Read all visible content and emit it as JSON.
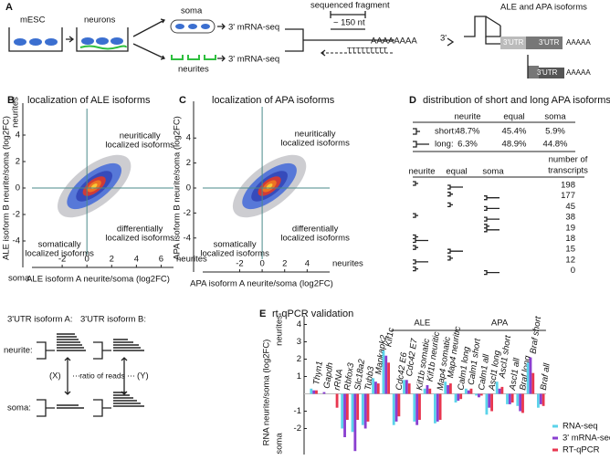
{
  "panel_a": {
    "label": "A",
    "mesc": "mESC",
    "neurons": "neurons",
    "soma": "soma",
    "neurites": "neurites",
    "seq_soma": "3' mRNA-seq",
    "seq_neurites": "3' mRNA-seq",
    "fragment": "sequenced fragment",
    "length": "~ 150 nt",
    "polya": "AAAAAAAA",
    "three_prime": "3'",
    "polyt": "TTTTTTTTT",
    "isoforms_title": "ALE and APA isoforms",
    "utr_1": "3'UTR",
    "utr_2": "3'UTR",
    "polya_2": "AAAAA",
    "utr_3": "3'UTR",
    "polya_3": "AAAAA"
  },
  "chart_data": [
    {
      "type": "density",
      "panel_label": "B",
      "title": "localization of ALE isoforms",
      "x_label": "ALE isoform A neurite/soma (log2FC)",
      "y_label": "ALE isoform B neurite/soma (log2FC)",
      "x_end_label": "neurites",
      "y_top_label": "neurites",
      "y_bottom_label": "soma",
      "annotation_neurite": [
        "neuritically",
        "localized isoforms"
      ],
      "annotation_differential": [
        "differentially",
        "localized isoforms"
      ],
      "annotation_somatic": [
        "somatically",
        "localized isoforms"
      ],
      "xlim": [
        -4,
        7
      ],
      "ylim": [
        -6,
        6
      ],
      "xticks": [
        -2,
        0,
        2,
        4,
        6
      ],
      "yticks": [
        -4,
        -2,
        0,
        2,
        4
      ]
    },
    {
      "type": "density",
      "panel_label": "C",
      "title": "localization of APA isoforms",
      "x_label": "APA isoform A neurite/soma (log2FC)",
      "y_label": "APA isoform B neurite/soma (log2FC)",
      "x_end_label": "neurites",
      "annotation_neurite": [
        "neuritically",
        "localized isoforms"
      ],
      "annotation_differential": [
        "differentially",
        "localized isoforms"
      ],
      "annotation_somatic": [
        "somatically",
        "localized isoforms"
      ],
      "xlim": [
        -5,
        6
      ],
      "ylim": [
        -6.5,
        6.5
      ],
      "xticks": [
        -2,
        0,
        2,
        4
      ],
      "yticks": [
        -4,
        -2,
        0,
        2,
        4
      ]
    },
    {
      "type": "bar",
      "panel_label": "E",
      "title": "rt-qPCR validation",
      "y_label": "RNA neurite/soma (log2FC)",
      "y_top_label": "neurites",
      "y_bottom_label": "soma",
      "groups": [
        "ALE",
        "APA"
      ],
      "categories": [
        "Thyn1",
        "Gapdh",
        "rRNA",
        "Rbfox3",
        "Slc18a2",
        "Tubb3",
        "Mapkapk2",
        "Kif1c",
        "Cdc42 E6",
        "Cdc42 E7",
        "Kif1b somatic",
        "Kif1b neuritic",
        "Map4 somatic",
        "Map4 neuritic",
        "Calm1 long",
        "Calm1 short",
        "Calm1 all",
        "Ascl1 long",
        "Ascl1 short",
        "Ascl1 all",
        "Braf long",
        "Braf short",
        "Braf all"
      ],
      "series": [
        {
          "name": "RNA-seq",
          "color": "#5bd3ea",
          "values": [
            0.3,
            0.0,
            null,
            -2.0,
            -2.2,
            -1.8,
            0.9,
            2.5,
            -1.8,
            0.8,
            -1.6,
            0.3,
            -1.7,
            0.7,
            -0.5,
            0.3,
            -0.1,
            -1.2,
            0.7,
            -0.6,
            -0.7,
            1.8,
            -0.8
          ]
        },
        {
          "name": "3' mRNA-seq",
          "color": "#8a3fd0",
          "values": [
            0.2,
            0.1,
            null,
            -2.5,
            -3.3,
            -2.0,
            0.7,
            2.2,
            -1.6,
            0.8,
            -1.8,
            0.5,
            -1.6,
            0.5,
            -0.4,
            0.2,
            -0.2,
            -0.8,
            0.3,
            -0.6,
            -1.0,
            2.1,
            -0.6
          ]
        },
        {
          "name": "RT-qPCR",
          "color": "#e8364f",
          "values": [
            0.2,
            0.0,
            -0.8,
            -1.5,
            -1.5,
            -1.6,
            0.6,
            1.8,
            -1.3,
            0.6,
            -1.5,
            0.3,
            -1.5,
            0.6,
            -0.3,
            0.3,
            -0.1,
            -1.0,
            0.4,
            -0.5,
            -1.1,
            1.2,
            -0.7
          ]
        }
      ],
      "ylim": [
        -3.5,
        4.5
      ],
      "yticks": [
        -2,
        -1,
        1,
        2,
        3,
        4
      ]
    }
  ],
  "panel_d": {
    "label": "D",
    "title": "distribution of short and long APA isoforms",
    "header": [
      "neurite",
      "equal",
      "soma"
    ],
    "rows": [
      [
        "short:",
        "48.7%",
        "45.4%",
        "5.9%"
      ],
      [
        "long:",
        "6.3%",
        "48.9%",
        "44.8%"
      ]
    ],
    "pattern_header": [
      "neurite",
      "equal",
      "soma"
    ],
    "count_header": [
      "number of",
      "transcripts"
    ],
    "counts": [
      "198",
      "177",
      "45",
      "38",
      "19",
      "18",
      "15",
      "12",
      "0"
    ]
  },
  "read_diagram": {
    "isoform_a": "3'UTR isoform A:",
    "isoform_b": "3'UTR isoform B:",
    "neurite": "neurite:",
    "soma": "soma:",
    "x": "(X)",
    "ratio": "ratio of reads",
    "y": "(Y)"
  }
}
